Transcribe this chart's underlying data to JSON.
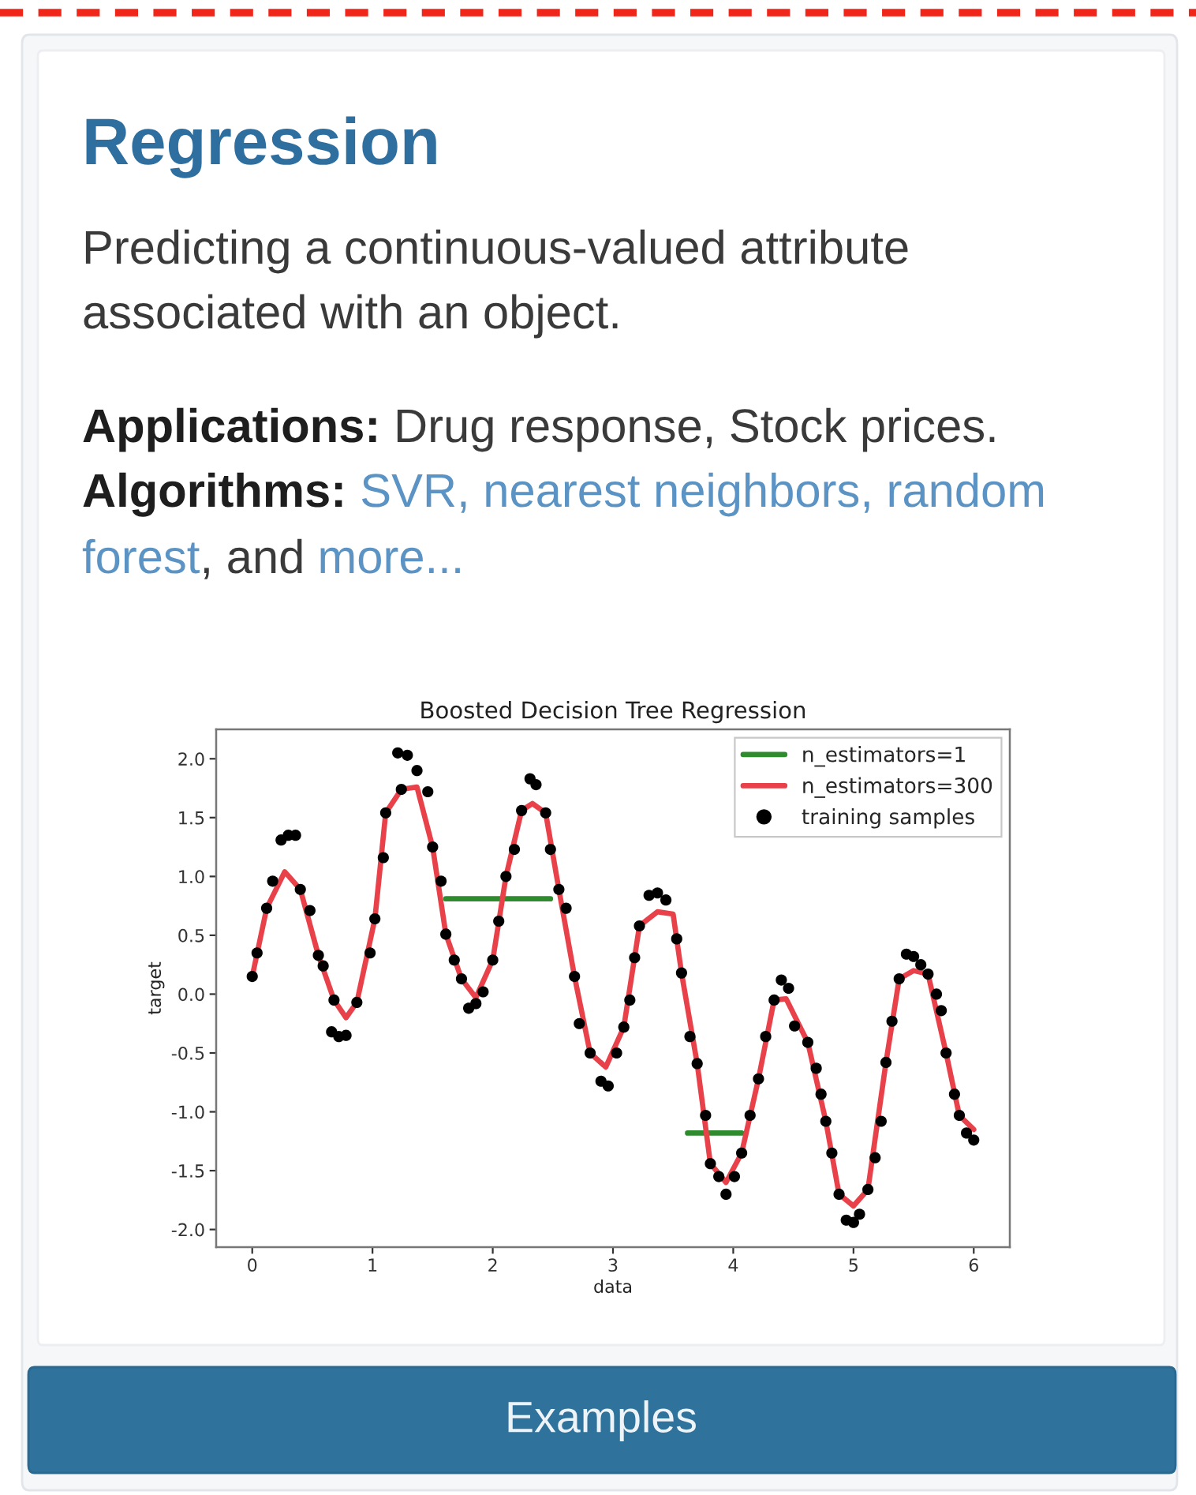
{
  "chart_data": {
    "type": "scatter",
    "title": "Boosted Decision Tree Regression",
    "xlabel": "data",
    "ylabel": "target",
    "annotations": [
      "Regression",
      "Predicting a continuous-valued attribute",
      "associated with an object.",
      "Applications:",
      "Drug response, Stock prices.",
      "Algorithms:",
      "SVR, nearest neighbors, random",
      "forest",
      ", and",
      "more...",
      "Examples"
    ],
    "series": [
      {
        "name": "n_estimators=1",
        "type": "line",
        "color": "#2e8b2e",
        "x": [
          1.61,
          2.48,
          3.0,
          3.62,
          4.07
        ],
        "values": [
          0.81,
          0.81,
          null,
          -1.18,
          -1.18
        ]
      },
      {
        "name": "n_estimators=300",
        "type": "line",
        "color": "#e8414a",
        "x": [
          0.0,
          0.12,
          0.27,
          0.4,
          0.55,
          0.68,
          0.78,
          0.87,
          1.02,
          1.11,
          1.24,
          1.37,
          1.5,
          1.61,
          1.74,
          1.86,
          2.0,
          2.11,
          2.24,
          2.33,
          2.44,
          2.55,
          2.68,
          2.81,
          2.94,
          3.09,
          3.22,
          3.37,
          3.5,
          3.57,
          3.7,
          3.81,
          3.94,
          4.07,
          4.21,
          4.34,
          4.44,
          4.62,
          4.77,
          4.88,
          5.0,
          5.12,
          5.27,
          5.38,
          5.5,
          5.62,
          5.77,
          5.88,
          6.0
        ],
        "values": [
          0.15,
          0.73,
          1.04,
          0.89,
          0.33,
          -0.05,
          -0.2,
          -0.07,
          0.64,
          1.54,
          1.74,
          1.76,
          1.25,
          0.51,
          0.13,
          -0.03,
          0.29,
          1.0,
          1.56,
          1.62,
          1.54,
          0.89,
          0.15,
          -0.5,
          -0.62,
          -0.28,
          0.58,
          0.7,
          0.68,
          0.18,
          -0.59,
          -1.44,
          -1.6,
          -1.35,
          -0.72,
          -0.05,
          -0.04,
          -0.41,
          -1.08,
          -1.7,
          -1.8,
          -1.66,
          -0.58,
          0.13,
          0.2,
          0.17,
          -0.5,
          -1.03,
          -1.15
        ]
      },
      {
        "name": "training samples",
        "color": "#000000",
        "marker": "circle",
        "x": [
          0.0,
          0.04,
          0.12,
          0.17,
          0.24,
          0.3,
          0.36,
          0.4,
          0.48,
          0.55,
          0.59,
          0.68,
          0.66,
          0.72,
          0.78,
          0.87,
          0.98,
          1.02,
          1.09,
          1.11,
          1.24,
          1.21,
          1.29,
          1.37,
          1.46,
          1.5,
          1.57,
          1.61,
          1.68,
          1.74,
          1.8,
          1.86,
          1.92,
          2.0,
          2.05,
          2.11,
          2.18,
          2.24,
          2.31,
          2.36,
          2.44,
          2.48,
          2.55,
          2.61,
          2.68,
          2.72,
          2.81,
          2.9,
          2.96,
          3.03,
          3.09,
          3.14,
          3.18,
          3.22,
          3.3,
          3.37,
          3.44,
          3.53,
          3.57,
          3.64,
          3.7,
          3.77,
          3.81,
          3.88,
          3.94,
          4.01,
          4.07,
          4.14,
          4.21,
          4.27,
          4.34,
          4.4,
          4.46,
          4.51,
          4.62,
          4.69,
          4.73,
          4.77,
          4.82,
          4.88,
          4.94,
          5.0,
          5.05,
          5.12,
          5.18,
          5.23,
          5.27,
          5.32,
          5.38,
          5.44,
          5.5,
          5.56,
          5.62,
          5.69,
          5.73,
          5.77,
          5.84,
          5.88,
          5.94,
          6.0
        ],
        "values": [
          0.15,
          0.35,
          0.73,
          0.96,
          1.31,
          1.35,
          1.35,
          0.89,
          0.71,
          0.33,
          0.24,
          -0.05,
          -0.32,
          -0.36,
          -0.35,
          -0.07,
          0.35,
          0.64,
          1.16,
          1.54,
          1.74,
          2.05,
          2.03,
          1.9,
          1.72,
          1.25,
          0.96,
          0.51,
          0.29,
          0.13,
          -0.12,
          -0.08,
          0.02,
          0.29,
          0.62,
          1.0,
          1.23,
          1.56,
          1.83,
          1.78,
          1.54,
          1.23,
          0.89,
          0.73,
          0.15,
          -0.25,
          -0.5,
          -0.74,
          -0.78,
          -0.5,
          -0.28,
          -0.05,
          0.31,
          0.58,
          0.84,
          0.86,
          0.8,
          0.47,
          0.18,
          -0.36,
          -0.59,
          -1.03,
          -1.44,
          -1.55,
          -1.7,
          -1.55,
          -1.35,
          -1.03,
          -0.72,
          -0.36,
          -0.05,
          0.12,
          0.05,
          -0.27,
          -0.41,
          -0.63,
          -0.85,
          -1.08,
          -1.35,
          -1.7,
          -1.92,
          -1.94,
          -1.87,
          -1.66,
          -1.39,
          -1.08,
          -0.58,
          -0.23,
          0.13,
          0.34,
          0.32,
          0.25,
          0.17,
          0.0,
          -0.14,
          -0.5,
          -0.85,
          -1.03,
          -1.18,
          -1.24
        ]
      }
    ],
    "xlim": [
      -0.3,
      6.3
    ],
    "xticks": [
      0,
      1,
      2,
      3,
      4,
      5,
      6
    ],
    "ylim": [
      -2.15,
      2.25
    ],
    "yticks": [
      {
        "value": -2,
        "label": "-2.0"
      },
      {
        "value": -1.5,
        "label": "-1.5"
      },
      {
        "value": -1,
        "label": "-1.0"
      },
      {
        "value": -0.5,
        "label": "-0.5"
      },
      {
        "value": 0,
        "label": "0.0"
      },
      {
        "value": 0.5,
        "label": "0.5"
      },
      {
        "value": 1,
        "label": "1.0"
      },
      {
        "value": 1.5,
        "label": "1.5"
      },
      {
        "value": 2,
        "label": "2.0"
      }
    ],
    "legend": "top right"
  }
}
